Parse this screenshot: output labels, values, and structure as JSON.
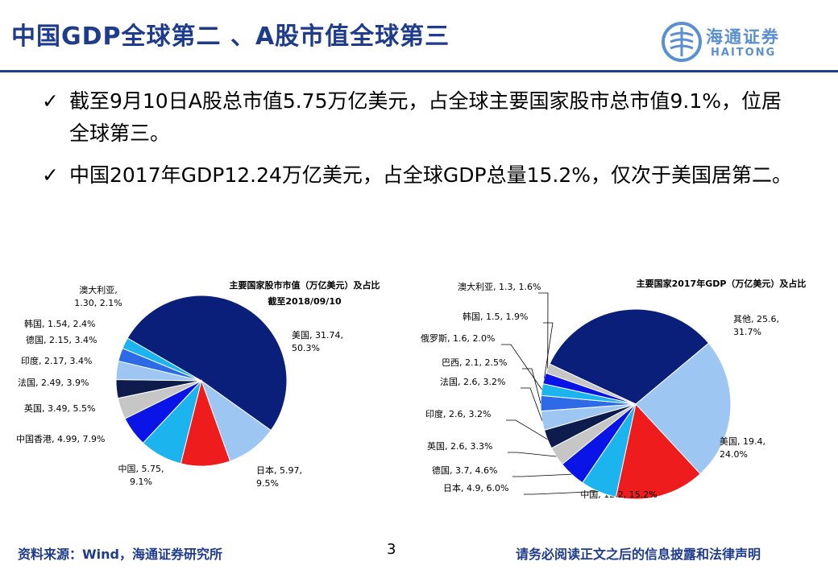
{
  "header": {
    "title": "中国GDP全球第二 、A股市值全球第三",
    "logo_text": "海通证券",
    "logo_sub": "HAITONG",
    "accent_color": "#1f3c8c"
  },
  "bullets": [
    {
      "check": "✓",
      "text": "截至9月10日A股总市值5.75万亿美元，占全球主要国家股市总市值9.1%，位居全球第三。"
    },
    {
      "check": "✓",
      "text": "中国2017年GDP12.24万亿美元，占全球GDP总量15.2%，仅次于美国居第二。"
    }
  ],
  "footer": {
    "source": "资料来源：Wind，海通证券研究所",
    "page": "3",
    "disclaimer": "请务必阅读正文之后的信息披露和法律声明"
  },
  "chart_data": [
    {
      "type": "pie",
      "title": "主要国家股市市值（万亿美元）及占比",
      "subtitle": "截至2018/09/10",
      "slices": [
        {
          "name": "美国",
          "value": 31.74,
          "pct": 50.3,
          "color": "#0a1f7a",
          "label": "美国, 31.74,\n50.3%"
        },
        {
          "name": "日本",
          "value": 5.97,
          "pct": 9.5,
          "color": "#9ec6f2",
          "label": "日本, 5.97,\n9.5%"
        },
        {
          "name": "中国",
          "value": 5.75,
          "pct": 9.1,
          "color": "#ee1c1c",
          "label": "中国, 5.75,\n9.1%"
        },
        {
          "name": "中国香港",
          "value": 4.99,
          "pct": 7.9,
          "color": "#1cb4ef",
          "label": "中国香港, 4.99, 7.9%"
        },
        {
          "name": "英国",
          "value": 3.49,
          "pct": 5.5,
          "color": "#0a14e6",
          "label": "英国, 3.49, 5.5%"
        },
        {
          "name": "法国",
          "value": 2.49,
          "pct": 3.9,
          "color": "#c6c6c6",
          "label": "法国, 2.49, 3.9%"
        },
        {
          "name": "印度",
          "value": 2.17,
          "pct": 3.4,
          "color": "#0d1b4d",
          "label": "印度, 2.17, 3.4%"
        },
        {
          "name": "德国",
          "value": 2.15,
          "pct": 3.4,
          "color": "#9ec6f2",
          "label": "德国, 2.15, 3.4%"
        },
        {
          "name": "韩国",
          "value": 1.54,
          "pct": 2.4,
          "color": "#2d6ae8",
          "label": "韩国, 1.54, 2.4%"
        },
        {
          "name": "澳大利亚",
          "value": 1.3,
          "pct": 2.1,
          "color": "#1cb4ef",
          "label": "澳大利亚,\n1.30, 2.1%"
        }
      ]
    },
    {
      "type": "pie",
      "title": "主要国家2017年GDP（万亿美元）及占比",
      "slices": [
        {
          "name": "其他",
          "value": 25.6,
          "pct": 31.7,
          "color": "#0a1f7a",
          "label": "其他, 25.6,\n31.7%"
        },
        {
          "name": "美国",
          "value": 19.4,
          "pct": 24.0,
          "color": "#9ec6f2",
          "label": "美国, 19.4,\n24.0%"
        },
        {
          "name": "中国",
          "value": 12.2,
          "pct": 15.2,
          "color": "#ee1c1c",
          "label": "中国, 12.2, 15.2%"
        },
        {
          "name": "日本",
          "value": 4.9,
          "pct": 6.0,
          "color": "#1cb4ef",
          "label": "日本, 4.9, 6.0%"
        },
        {
          "name": "德国",
          "value": 3.7,
          "pct": 4.6,
          "color": "#0a14e6",
          "label": "德国, 3.7, 4.6%"
        },
        {
          "name": "英国",
          "value": 2.6,
          "pct": 3.3,
          "color": "#c6c6c6",
          "label": "英国, 2.6, 3.3%"
        },
        {
          "name": "印度",
          "value": 2.6,
          "pct": 3.2,
          "color": "#0d1b4d",
          "label": "印度, 2.6, 3.2%"
        },
        {
          "name": "法国",
          "value": 2.6,
          "pct": 3.2,
          "color": "#9ec6f2",
          "label": "法国, 2.6, 3.2%"
        },
        {
          "name": "巴西",
          "value": 2.1,
          "pct": 2.5,
          "color": "#2d6ae8",
          "label": "巴西, 2.1, 2.5%"
        },
        {
          "name": "俄罗斯",
          "value": 1.6,
          "pct": 2.0,
          "color": "#1cb4ef",
          "label": "俄罗斯, 1.6, 2.0%"
        },
        {
          "name": "韩国",
          "value": 1.5,
          "pct": 1.9,
          "color": "#0a14e6",
          "label": "韩国, 1.5, 1.9%"
        },
        {
          "name": "澳大利亚",
          "value": 1.3,
          "pct": 1.6,
          "color": "#c6c6c6",
          "label": "澳大利亚, 1.3, 1.6%"
        }
      ]
    }
  ]
}
